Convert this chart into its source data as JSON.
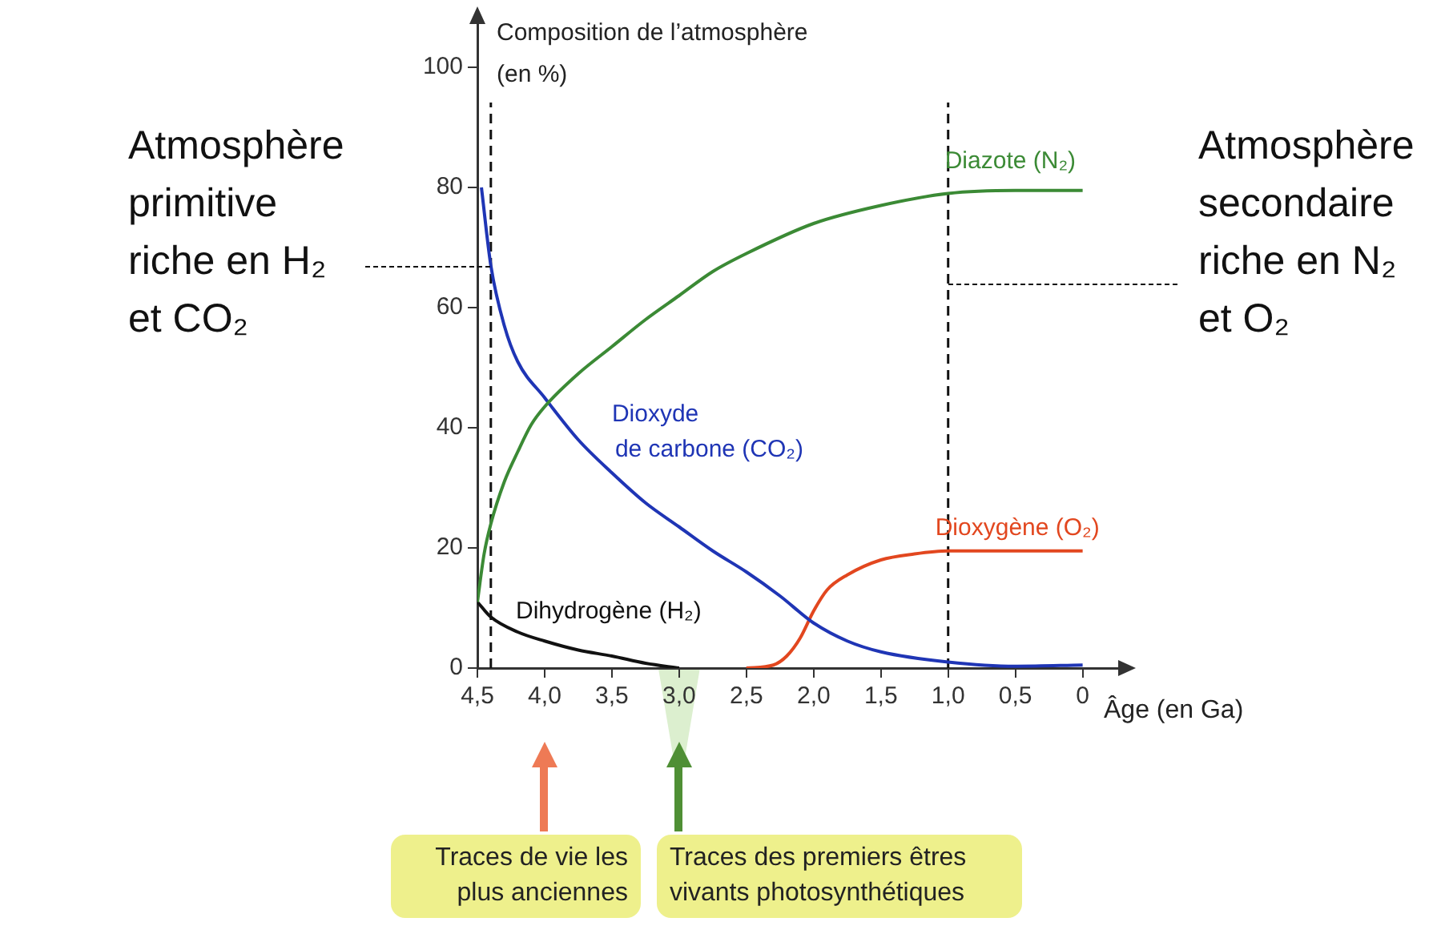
{
  "chart_data": {
    "type": "line",
    "xlabel": "Âge (en Ga)",
    "ylabel": "Composition de l’atmosphère (en %)",
    "xlim": [
      4.5,
      -0.3
    ],
    "ylim": [
      0,
      108
    ],
    "xticks": [
      {
        "value": 4.5,
        "label": "4,5"
      },
      {
        "value": 4,
        "label": "4,0"
      },
      {
        "value": 3.5,
        "label": "3,5"
      },
      {
        "value": 3,
        "label": "3,0"
      },
      {
        "value": 2.5,
        "label": "2,5"
      },
      {
        "value": 2,
        "label": "2,0"
      },
      {
        "value": 1.5,
        "label": "1,5"
      },
      {
        "value": 1,
        "label": "1,0"
      },
      {
        "value": 0.5,
        "label": "0,5"
      },
      0
    ],
    "yticks": [
      0,
      20,
      40,
      60,
      80,
      100
    ],
    "grid": false,
    "legend": false,
    "marker": "none",
    "line_style": "solid",
    "series": [
      {
        "name": "Diazote (N₂)",
        "color": "#3b8a35",
        "x": [
          4.5,
          4.45,
          4.4,
          4.3,
          4.2,
          4.1,
          4.0,
          3.75,
          3.5,
          3.25,
          3.0,
          2.75,
          2.5,
          2.0,
          1.5,
          1.0,
          0.5,
          0
        ],
        "values": [
          11,
          19,
          24,
          31,
          36,
          40.5,
          43.5,
          49,
          53.5,
          58,
          62,
          66,
          69,
          74,
          77,
          79,
          79.5,
          79.5
        ]
      },
      {
        "name": "Dioxyde de carbone (CO₂)",
        "color": "#1f35b5",
        "x": [
          4.47,
          4.4,
          4.3,
          4.2,
          4.0,
          3.75,
          3.5,
          3.25,
          3.0,
          2.75,
          2.5,
          2.25,
          2.0,
          1.75,
          1.5,
          1.0,
          0.5,
          0
        ],
        "values": [
          80,
          67,
          57,
          51,
          45,
          38,
          32.5,
          27.5,
          23.5,
          19.5,
          16,
          12,
          7.5,
          4.5,
          2.7,
          1,
          0.3,
          0.5
        ]
      },
      {
        "name": "Dioxygène (O₂)",
        "color": "#e2471f",
        "x": [
          2.5,
          2.3,
          2.2,
          2.1,
          2.0,
          1.9,
          1.75,
          1.5,
          1.25,
          1.0,
          0.5,
          0
        ],
        "values": [
          0,
          0.5,
          2,
          5,
          9.5,
          13,
          15.5,
          18,
          19,
          19.5,
          19.5,
          19.5
        ]
      },
      {
        "name": "Dihydrogène (H₂)",
        "color": "#111111",
        "x": [
          4.5,
          4.4,
          4.2,
          4.0,
          3.75,
          3.5,
          3.25,
          3.0
        ],
        "values": [
          11,
          8.5,
          6,
          4.5,
          3,
          2,
          0.8,
          0
        ]
      }
    ],
    "ref_lines": [
      {
        "axis": "x",
        "value": 4.4,
        "line_style": "dashed",
        "color": "#111111"
      },
      {
        "axis": "x",
        "value": 1.0,
        "line_style": "dashed",
        "color": "#111111"
      }
    ],
    "annotations": [
      {
        "text": "Atmosphère primitive riche en H₂ et CO₂",
        "x": 4.4,
        "y": 67
      },
      {
        "text": "Atmosphère secondaire riche en N₂ et O₂",
        "x": 1.0,
        "y": 64
      },
      "Traces de vie les plus anciennes",
      "Traces des premiers êtres vivants photosynthétiques"
    ]
  }
}
